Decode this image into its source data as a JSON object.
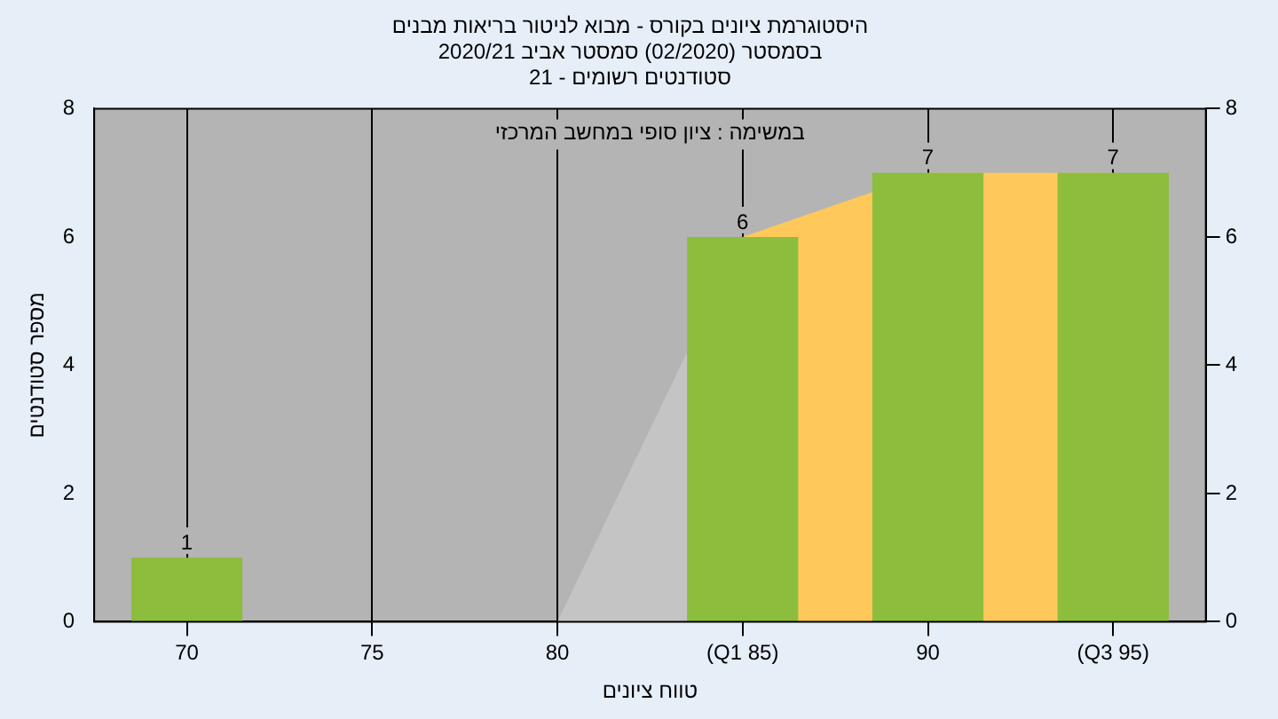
{
  "chart_data": {
    "type": "bar",
    "title": [
      "היסטוגרמת ציונים בקורס - מבוא לניטור בריאות מבנים",
      "בסמסטר (02/2020) סמסטר אביב 2020/21",
      "סטודנטים רשומים - 21"
    ],
    "xlabel": "טווח ציונים",
    "ylabel": "מספר סטודנטים",
    "annotations": [
      "במשימה : ציון סופי במחשב המרכזי"
    ],
    "categories": [
      "70",
      "75",
      "80",
      "(Q1 85)",
      "90",
      "(Q3 95)"
    ],
    "series": [
      {
        "color": "#8cbd3c",
        "values": [
          1,
          0,
          0,
          6,
          7,
          7
        ],
        "value_labels": [
          "1",
          null,
          null,
          "6",
          "7",
          "7"
        ]
      },
      {
        "type": "area",
        "color": "#c4c4c4",
        "values": [
          null,
          null,
          0,
          6,
          null,
          null
        ]
      },
      {
        "type": "area",
        "color": "#ffc85a",
        "values": [
          null,
          null,
          null,
          6,
          7,
          7
        ]
      }
    ],
    "ylim": [
      0,
      8
    ],
    "yticks": [
      0,
      2,
      4,
      6,
      8
    ],
    "y2lim": [
      0,
      8
    ],
    "y2ticks": [
      0,
      2,
      4,
      6,
      8
    ],
    "grid": "x",
    "legend": false
  }
}
